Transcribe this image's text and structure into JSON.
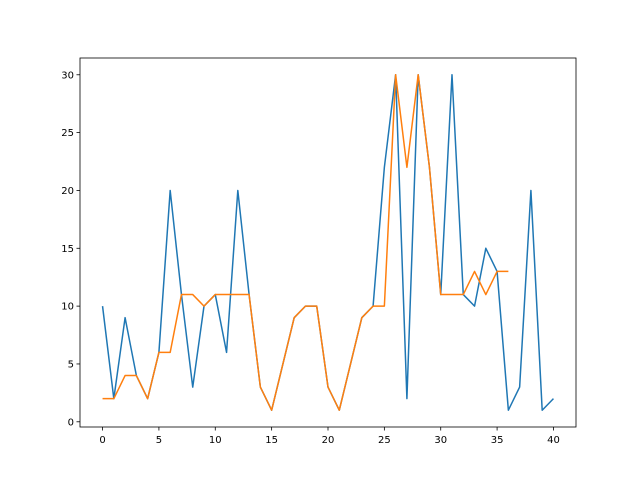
{
  "chart_data": {
    "type": "line",
    "x": [
      0,
      1,
      2,
      3,
      4,
      5,
      6,
      7,
      8,
      9,
      10,
      11,
      12,
      13,
      14,
      15,
      16,
      17,
      18,
      19,
      20,
      21,
      22,
      23,
      24,
      25,
      26,
      27,
      28,
      29,
      30,
      31,
      32,
      33,
      34,
      35,
      36,
      37,
      38,
      39,
      40
    ],
    "series": [
      {
        "color": "#1f77b4",
        "values": [
          10,
          2,
          9,
          4,
          2,
          6,
          20,
          11,
          3,
          10,
          11,
          6,
          20,
          11,
          3,
          1,
          5,
          9,
          10,
          10,
          3,
          1,
          5,
          9,
          10,
          22,
          30,
          2,
          30,
          22,
          11,
          30,
          11,
          10,
          15,
          13,
          1,
          3,
          20,
          1,
          2
        ]
      },
      {
        "color": "#ff7f0e",
        "values": [
          2,
          2,
          4,
          4,
          2,
          6,
          6,
          11,
          11,
          10,
          11,
          11,
          11,
          11,
          3,
          1,
          5,
          9,
          10,
          10,
          3,
          1,
          5,
          9,
          10,
          10,
          30,
          22,
          30,
          22,
          11,
          11,
          11,
          13,
          11,
          13,
          13,
          null,
          null,
          null,
          null
        ]
      }
    ],
    "xlim": [
      -2,
      42
    ],
    "ylim": [
      -0.45,
      31.45
    ],
    "xticks": [
      0,
      5,
      10,
      15,
      20,
      25,
      30,
      35,
      40
    ],
    "yticks": [
      0,
      5,
      10,
      15,
      20,
      25,
      30
    ]
  }
}
